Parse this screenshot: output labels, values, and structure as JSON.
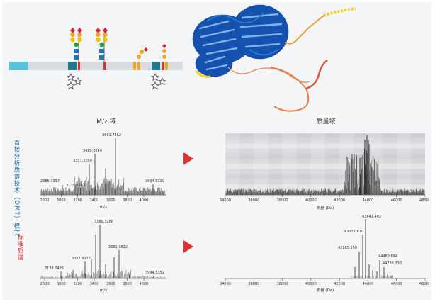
{
  "headers": {
    "mz_domain": "M/z 域",
    "mass_domain": "质量域"
  },
  "side_labels": {
    "dmt_line1": "直接分析质谱技术",
    "dmt_line2": "（DMT）模式",
    "standard": "标准质谱"
  },
  "axes": {
    "mz_ticks": [
      "2800",
      "3000",
      "3200",
      "3400",
      "3600",
      "3800",
      "4000"
    ],
    "mz_label": "m/z",
    "mass_ticks": [
      "34000",
      "36000",
      "38000",
      "40000",
      "42000",
      "44000",
      "46000",
      "48000"
    ],
    "mass_label": "质量 (Da)"
  },
  "colors": {
    "dmt_label": "#1f6fa8",
    "standard_label": "#e0312e",
    "arrow": "#e0312e",
    "protein_blue": "#1552b0",
    "domain_teal": "#21788a",
    "domain_cyan": "#5cc3d9",
    "domain_orange": "#f2a627"
  },
  "top_spectrum_peaks": [
    {
      "label": "2986.7337"
    },
    {
      "label": "3135.6243"
    },
    {
      "label": "3357.5554"
    },
    {
      "label": "3480.0640"
    },
    {
      "label": "3661.7362"
    },
    {
      "label": "3994.6190"
    }
  ],
  "bottom_spectrum_peaks": [
    {
      "label": "3138.0485"
    },
    {
      "label": "3357.9177"
    },
    {
      "label": "3380.3266"
    },
    {
      "label": "3661.9822"
    },
    {
      "label": "3994.5352"
    }
  ],
  "mass_peaks": [
    {
      "label": "43641.402"
    },
    {
      "label": "43321.870"
    },
    {
      "label": "42985.550"
    },
    {
      "label": "44489.684"
    },
    {
      "label": "44736.336"
    }
  ]
}
